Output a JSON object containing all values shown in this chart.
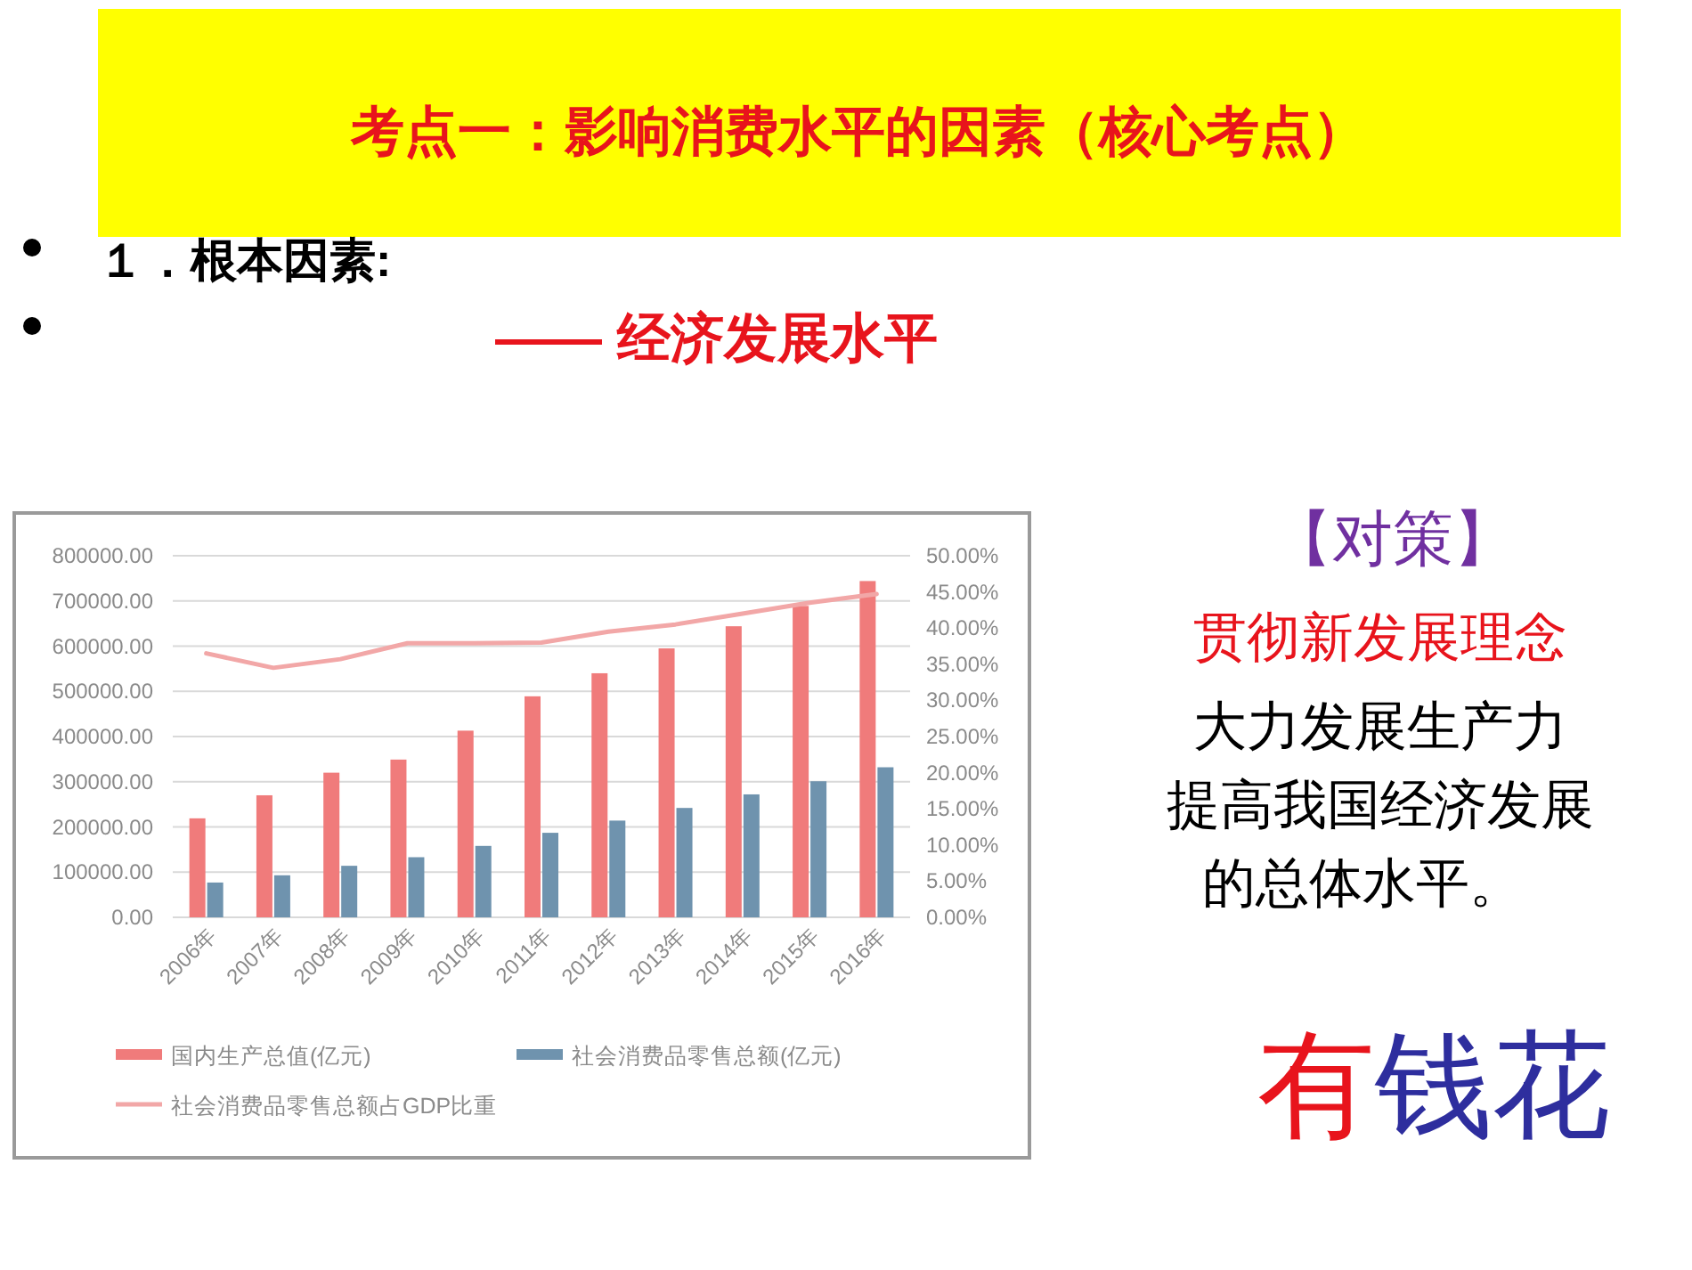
{
  "chart_data": {
    "type": "bar",
    "title": "考点一：影响消费水平的因素（核心考点）",
    "categories": [
      "2006年",
      "2007年",
      "2008年",
      "2009年",
      "2010年",
      "2011年",
      "2012年",
      "2013年",
      "2014年",
      "2015年",
      "2016年"
    ],
    "series": [
      {
        "name": "国内生产总值(亿元)",
        "color": "#f07b7b",
        "values": [
          219000,
          270000,
          320000,
          349000,
          413000,
          489000,
          540000,
          595000,
          644000,
          689000,
          744000
        ]
      },
      {
        "name": "社会消费品零售总额(亿元)",
        "color": "#6f93ae",
        "values": [
          77000,
          93000,
          114000,
          133000,
          158000,
          187000,
          214000,
          242000,
          272000,
          301000,
          332000
        ]
      },
      {
        "name": "社会消费品零售总额占GDP比重",
        "type": "line",
        "axis": "y2",
        "color": "#f2a7a7",
        "values": [
          36.5,
          34.5,
          35.7,
          37.9,
          37.9,
          38.0,
          39.5,
          40.5,
          42.0,
          43.5,
          44.7
        ]
      }
    ],
    "ylim": [
      0,
      800000
    ],
    "yticks": [
      {
        "value": 0,
        "label": "0.00"
      },
      {
        "value": 100000,
        "label": "100000.00"
      },
      {
        "value": 200000,
        "label": "200000.00"
      },
      {
        "value": 300000,
        "label": "300000.00"
      },
      {
        "value": 400000,
        "label": "400000.00"
      },
      {
        "value": 500000,
        "label": "500000.00"
      },
      {
        "value": 600000,
        "label": "600000.00"
      },
      {
        "value": 700000,
        "label": "700000.00"
      },
      {
        "value": 800000,
        "label": "800000.00"
      }
    ],
    "y2lim": [
      0,
      50
    ],
    "y2ticks": [
      {
        "value": 0,
        "label": "0.00%"
      },
      {
        "value": 5,
        "label": "5.00%"
      },
      {
        "value": 10,
        "label": "10.00%"
      },
      {
        "value": 15,
        "label": "15.00%"
      },
      {
        "value": 20,
        "label": "20.00%"
      },
      {
        "value": 25,
        "label": "25.00%"
      },
      {
        "value": 30,
        "label": "30.00%"
      },
      {
        "value": 35,
        "label": "35.00%"
      },
      {
        "value": 40,
        "label": "40.00%"
      },
      {
        "value": 45,
        "label": "45.00%"
      },
      {
        "value": 50,
        "label": "50.00%"
      }
    ],
    "grid": "y",
    "legend": "bottom",
    "annotations": [
      "１．根本因素:",
      "—— 经济发展水平",
      "【对策】",
      "贯彻新发展理念",
      "大力发展生产力",
      "提高我国经济发展",
      "的总体水平。",
      "有钱花"
    ]
  }
}
